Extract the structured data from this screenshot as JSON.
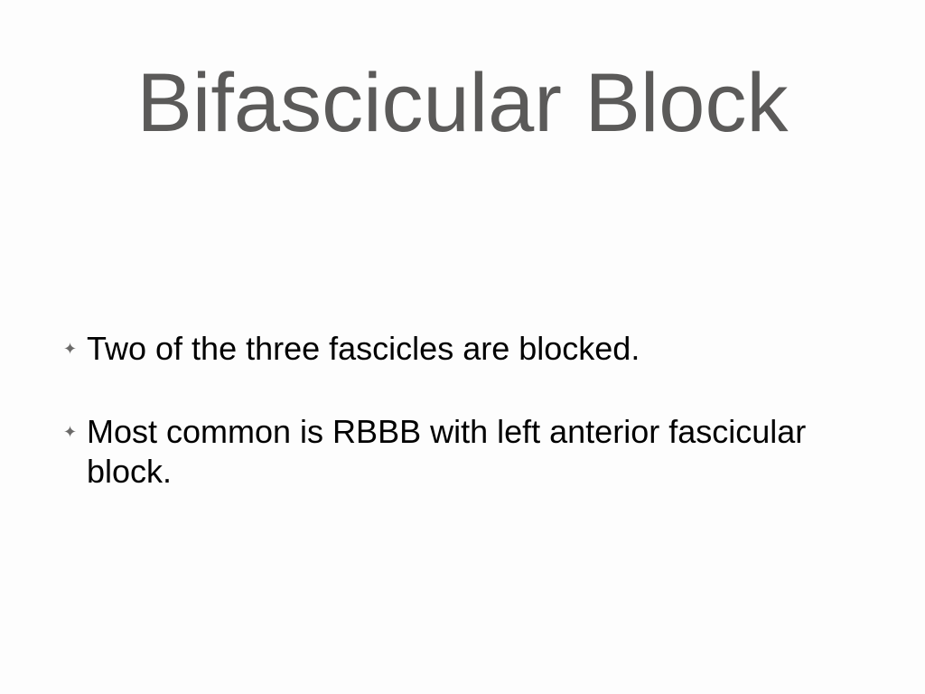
{
  "slide": {
    "title": "Bifascicular Block",
    "title_color": "#5b5a59",
    "title_fontsize": 92,
    "background_color": "#fdfdfd",
    "bullets": [
      {
        "marker": "✦",
        "text": "Two of the three fascicles are blocked."
      },
      {
        "marker": "✦",
        "text": "Most common is RBBB with left anterior fascicular block."
      }
    ],
    "bullet_marker_color": "#6b6a69",
    "bullet_text_color": "#000000",
    "bullet_fontsize": 36
  }
}
